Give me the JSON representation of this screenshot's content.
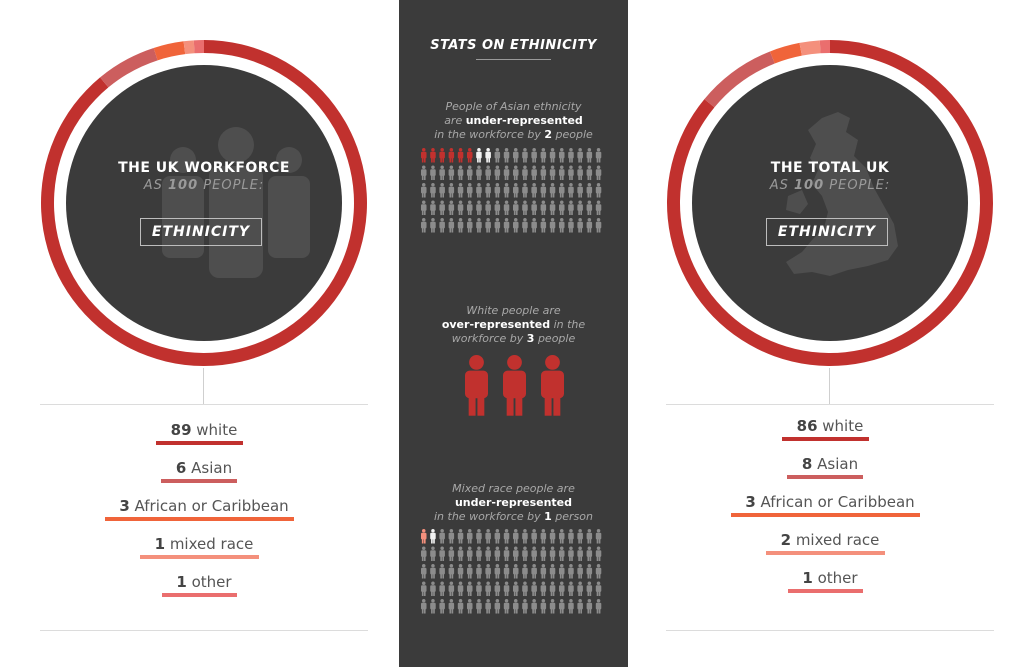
{
  "left": {
    "title": "THE UK WORKFORCE",
    "subtitle_pre": "AS ",
    "subtitle_num": "100",
    "subtitle_post": " PEOPLE:",
    "tag": "ETHINICITY"
  },
  "right": {
    "title": "THE TOTAL UK",
    "subtitle_pre": "AS ",
    "subtitle_num": "100",
    "subtitle_post": " PEOPLE:",
    "tag": "ETHINICITY"
  },
  "middle": {
    "title": "STATS ON ETHINICITY",
    "asian_l1": "People of Asian ethnicity",
    "asian_l2_pre": "are ",
    "asian_l2_bold": "under-represented",
    "asian_l3_pre": "in the workforce by ",
    "asian_l3_num": "2",
    "asian_l3_post": " people",
    "white_l1": "White people are",
    "white_l2_bold": "over-represented",
    "white_l2_post": " in the",
    "white_l3_pre": "workforce by ",
    "white_l3_num": "3",
    "white_l3_post": " people",
    "mixed_l1": "Mixed race people are",
    "mixed_l2_bold": "under-represented",
    "mixed_l3_pre": "in the workforce by ",
    "mixed_l3_num": "1",
    "mixed_l3_post": " person"
  },
  "chart_data": [
    {
      "type": "pie",
      "title": "THE UK WORKFORCE AS 100 PEOPLE: ETHINICITY",
      "categories": [
        "white",
        "Asian",
        "African or Caribbean",
        "mixed race",
        "other"
      ],
      "values": [
        89,
        6,
        3,
        1,
        1
      ],
      "colors": [
        "#c1312e",
        "#cc5e5e",
        "#f0643a",
        "#f4907c",
        "#ea6e6e"
      ]
    },
    {
      "type": "pie",
      "title": "THE TOTAL UK AS 100 PEOPLE: ETHINICITY",
      "categories": [
        "white",
        "Asian",
        "African or Caribbean",
        "mixed race",
        "other"
      ],
      "values": [
        86,
        8,
        3,
        2,
        1
      ],
      "colors": [
        "#c1312e",
        "#cc5e5e",
        "#f0643a",
        "#f4907c",
        "#ea6e6e"
      ]
    }
  ],
  "pictograms": {
    "asian": {
      "total": 100,
      "highlighted": 6,
      "white_marked": 2
    },
    "white": {
      "count": 3
    },
    "mixed": {
      "total": 100,
      "highlighted": 1,
      "white_marked": 1
    }
  },
  "colors": {
    "dark": "#3b3b3b",
    "white_seg": "#c1312e",
    "figure_grey": "#8c8c8c",
    "figure_red": "#c1312e"
  }
}
